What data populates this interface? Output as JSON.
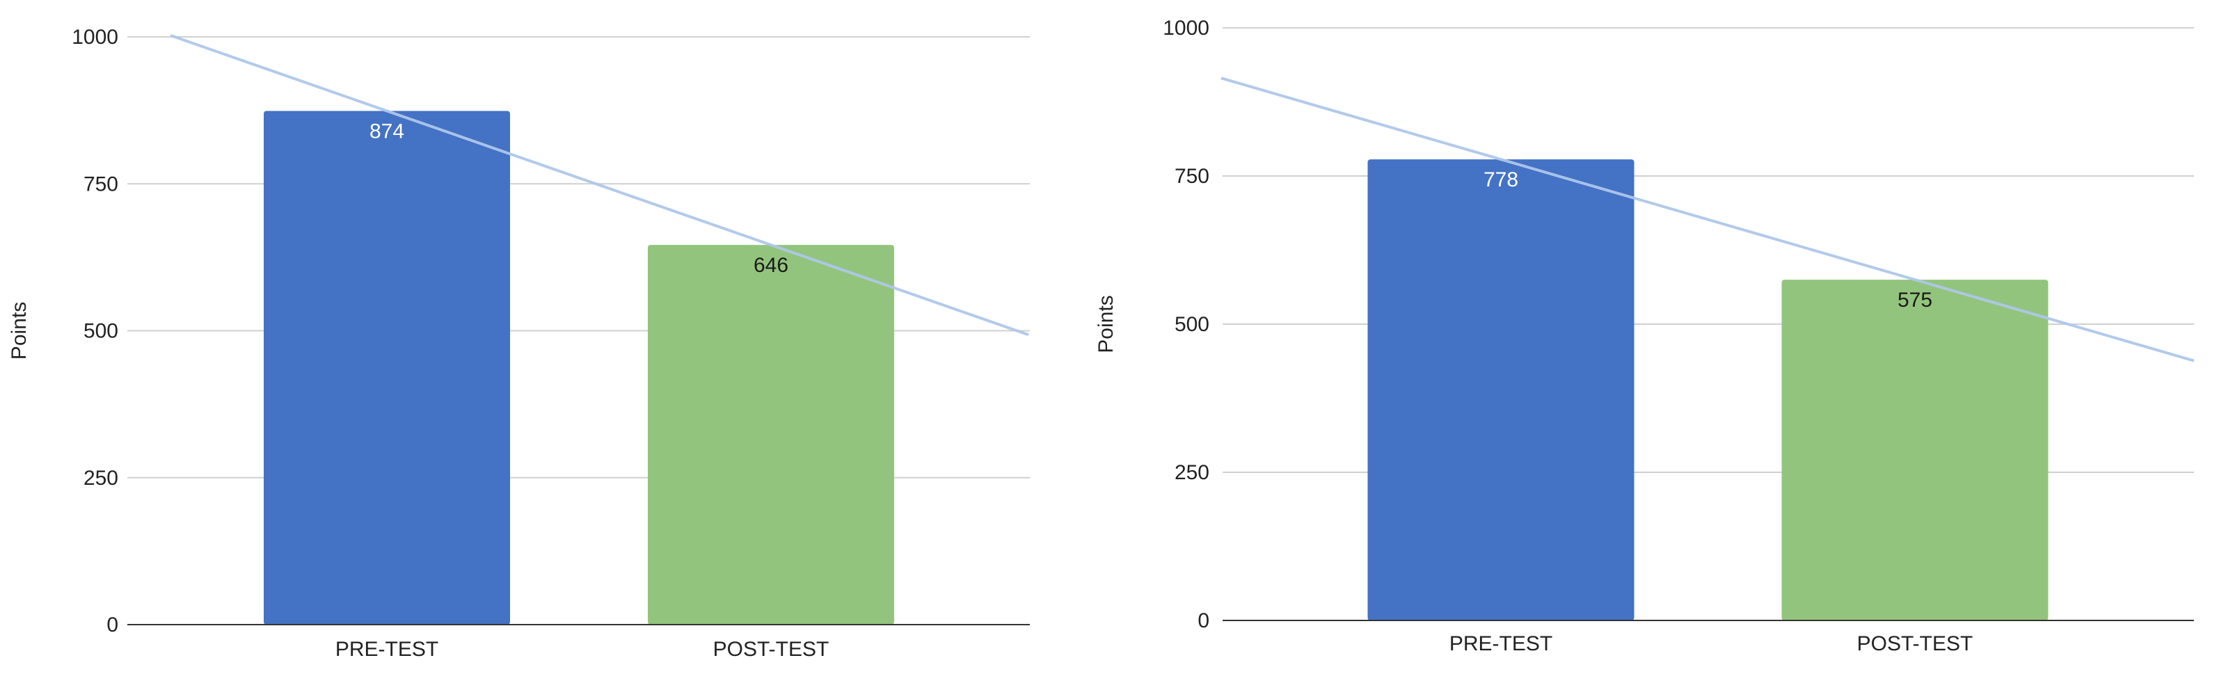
{
  "chart_data": [
    {
      "type": "bar",
      "categories": [
        "PRE-TEST",
        "POST-TEST"
      ],
      "values": [
        874,
        646
      ],
      "ylabel": "Points",
      "ylim": [
        0,
        1000
      ],
      "yticks": [
        0,
        250,
        500,
        750,
        1000
      ],
      "grid": true,
      "legend": "none",
      "trendline": {
        "type": "linear",
        "color": "#aec7ea"
      },
      "bar_colors": [
        "#4472c4",
        "#93c47d"
      ],
      "label_colors": [
        "#ffffff",
        "#1a1a1a"
      ]
    },
    {
      "type": "bar",
      "categories": [
        "PRE-TEST",
        "POST-TEST"
      ],
      "values": [
        778,
        575
      ],
      "ylabel": "Points",
      "ylim": [
        0,
        1000
      ],
      "yticks": [
        0,
        250,
        500,
        750,
        1000
      ],
      "grid": true,
      "legend": "none",
      "trendline": {
        "type": "linear",
        "color": "#aec7ea"
      },
      "bar_colors": [
        "#4472c4",
        "#93c47d"
      ],
      "label_colors": [
        "#ffffff",
        "#1a1a1a"
      ]
    }
  ]
}
